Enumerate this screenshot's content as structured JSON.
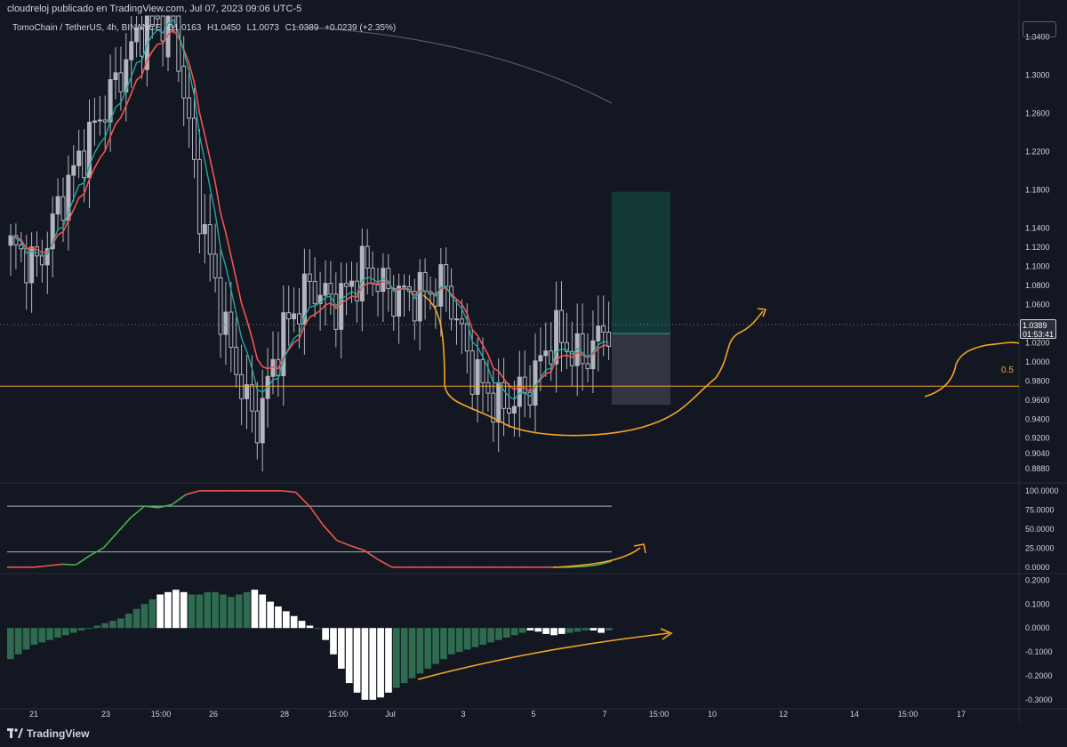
{
  "header": {
    "attribution": "cloudreloj publicado en TradingView.com, Jul 07, 2023 09:06 UTC-5",
    "symbol": "TomoChain / TetherUS, 4h, BINANCE",
    "open": "O1.0163",
    "high": "H1.0450",
    "low": "L1.0073",
    "close": "C1.0389",
    "change": "+0.0239 (+2.35%)"
  },
  "price_label": {
    "price": "1.0389",
    "countdown": "01:53:41"
  },
  "fib_label": "0.5",
  "brand": "TradingView",
  "colors": {
    "background": "#131722",
    "candle": "#b2b5be",
    "ema_red": "#f05454",
    "ema_teal": "#26a69a",
    "annotation": "#f5a623",
    "hist_green": "#2e6b4f",
    "hist_white": "#ffffff"
  },
  "chart_data": [
    {
      "type": "candlestick",
      "title": "TomoChain / TetherUS, 4h, BINANCE",
      "ylim": [
        0.876,
        1.362
      ],
      "y_ticks": [
        1.34,
        1.3,
        1.26,
        1.22,
        1.18,
        1.14,
        1.12,
        1.1,
        1.08,
        1.06,
        1.02,
        1.0,
        0.98,
        0.96,
        0.94,
        0.92,
        0.904,
        0.888
      ],
      "y_tick_labels": [
        "1.3400",
        "1.3000",
        "1.2600",
        "1.2200",
        "1.1800",
        "1.1400",
        "1.1200",
        "1.1000",
        "1.0800",
        "1.0600",
        "1.0200",
        "1.0000",
        "0.9800",
        "0.9600",
        "0.9400",
        "0.9200",
        "0.9040",
        "0.8880"
      ],
      "x_tick_labels": [
        "21",
        "23",
        "15:00",
        "26",
        "28",
        "15:00",
        "Jul",
        "3",
        "5",
        "7",
        "15:00",
        "10",
        "12",
        "14",
        "15:00",
        "17"
      ],
      "last_close": 1.0389,
      "fib_level": {
        "label": "0.5",
        "value": 0.9745
      },
      "position_tool": {
        "entry": 1.0295,
        "target": 1.178,
        "stop": 0.955
      },
      "key_prices": [
        1.12,
        1.1,
        1.18,
        1.24,
        1.3,
        1.36,
        1.36,
        1.15,
        1.02,
        0.93,
        1.03,
        1.08,
        1.06,
        1.1,
        1.07,
        1.07,
        1.08,
        0.99,
        0.95,
        0.97,
        1.03,
        1.0,
        1.04
      ]
    },
    {
      "type": "line",
      "title": "",
      "ylim": [
        -6,
        108
      ],
      "y_tick_labels": [
        "100.0000",
        "75.0000",
        "50.0000",
        "25.0000",
        "0.0000"
      ],
      "levels": [
        80,
        20
      ],
      "values": [
        0,
        0,
        0,
        2,
        4,
        3,
        15,
        25,
        45,
        65,
        80,
        78,
        82,
        95,
        100,
        100,
        100,
        100,
        100,
        100,
        100,
        98,
        80,
        55,
        35,
        28,
        22,
        10,
        0,
        0,
        0,
        0,
        0,
        0,
        0,
        0,
        0,
        0,
        0,
        0,
        0,
        0,
        1,
        3,
        8
      ]
    },
    {
      "type": "bar",
      "title": "",
      "ylim": [
        -0.33,
        0.22
      ],
      "y_tick_labels": [
        "0.2000",
        "0.1000",
        "0.0000",
        "-0.1000",
        "-0.2000",
        "-0.3000"
      ],
      "values": [
        -0.13,
        -0.11,
        -0.09,
        -0.07,
        -0.06,
        -0.05,
        -0.04,
        -0.03,
        -0.02,
        -0.01,
        0.0,
        0.01,
        0.02,
        0.03,
        0.04,
        0.06,
        0.08,
        0.1,
        0.12,
        0.14,
        0.15,
        0.16,
        0.15,
        0.14,
        0.14,
        0.15,
        0.15,
        0.14,
        0.13,
        0.14,
        0.15,
        0.16,
        0.14,
        0.11,
        0.09,
        0.07,
        0.05,
        0.03,
        0.01,
        0.0,
        -0.05,
        -0.11,
        -0.17,
        -0.23,
        -0.27,
        -0.3,
        -0.3,
        -0.29,
        -0.27,
        -0.25,
        -0.23,
        -0.21,
        -0.19,
        -0.17,
        -0.15,
        -0.13,
        -0.11,
        -0.1,
        -0.09,
        -0.08,
        -0.07,
        -0.06,
        -0.05,
        -0.04,
        -0.03,
        -0.02,
        -0.01,
        -0.015,
        -0.025,
        -0.03,
        -0.025,
        -0.02,
        -0.015,
        -0.01,
        -0.01,
        -0.02,
        -0.01
      ],
      "white_ranges": [
        [
          19,
          22
        ],
        [
          31,
          38
        ],
        [
          40,
          48
        ],
        [
          66,
          70
        ],
        [
          74,
          75
        ]
      ]
    }
  ]
}
